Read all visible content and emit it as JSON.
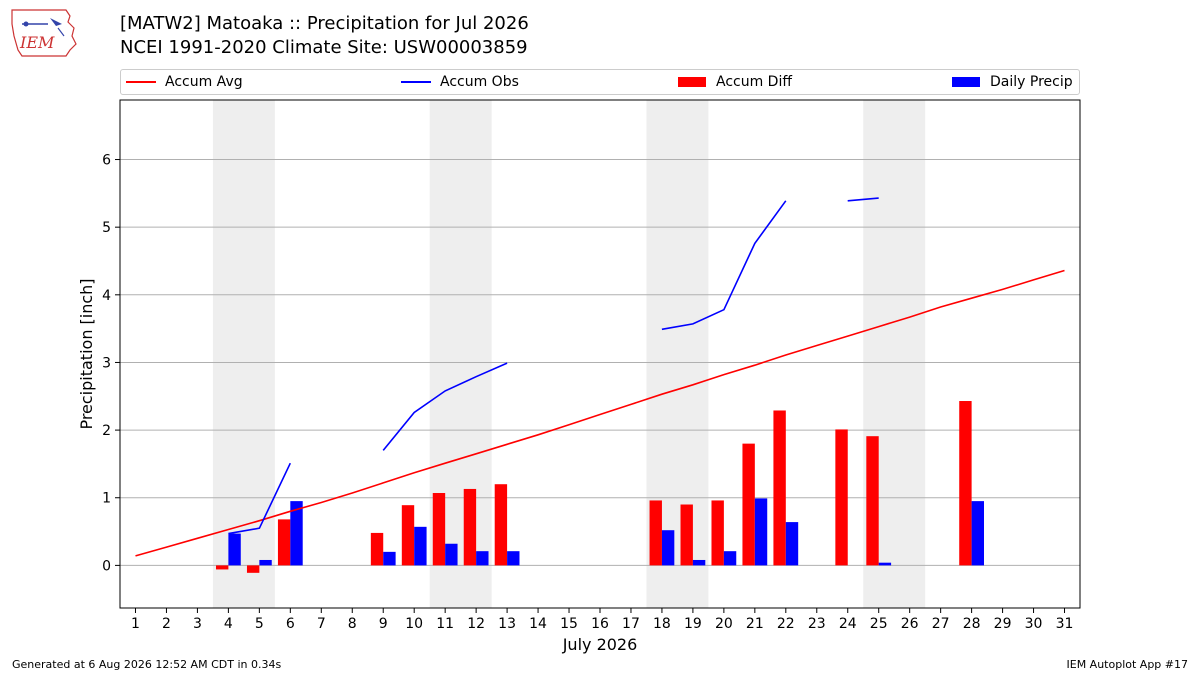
{
  "header": {
    "title_line1": "[MATW2] Matoaka :: Precipitation for Jul 2026",
    "title_line2": "NCEI 1991-2020 Climate Site: USW00003859"
  },
  "logo": {
    "text": "IEM",
    "icon": "iem-iowa-logo-icon"
  },
  "footer": {
    "generated": "Generated at 6 Aug 2026 12:52 AM CDT in 0.34s",
    "app": "IEM Autoplot App #17"
  },
  "colors": {
    "accum_avg": "#ff0000",
    "accum_obs": "#0000ff",
    "accum_diff": "#ff0000",
    "daily_precip": "#0000ff",
    "weekend_shade": "#eeeeee",
    "grid": "#b0b0b0"
  },
  "chart_data": {
    "type": "bar",
    "xlabel": "July 2026",
    "ylabel": "Precipitation [inch]",
    "xlim": [
      0.5,
      31.5
    ],
    "ylim": [
      -0.63,
      6.88
    ],
    "yticks": [
      0,
      1,
      2,
      3,
      4,
      5,
      6
    ],
    "grid": true,
    "legend_position": "top",
    "legend": {
      "accum_avg": "Accum Avg",
      "accum_obs": "Accum Obs",
      "accum_diff": "Accum Diff",
      "daily_precip": "Daily Precip"
    },
    "x": [
      1,
      2,
      3,
      4,
      5,
      6,
      7,
      8,
      9,
      10,
      11,
      12,
      13,
      14,
      15,
      16,
      17,
      18,
      19,
      20,
      21,
      22,
      23,
      24,
      25,
      26,
      27,
      28,
      29,
      30,
      31
    ],
    "weekend_shading": [
      [
        3.5,
        5.5
      ],
      [
        10.5,
        12.5
      ],
      [
        17.5,
        19.5
      ],
      [
        24.5,
        26.5
      ]
    ],
    "series": [
      {
        "name": "Accum Avg",
        "kind": "line",
        "values": [
          0.14,
          0.27,
          0.4,
          0.53,
          0.66,
          0.8,
          0.93,
          1.07,
          1.22,
          1.37,
          1.51,
          1.65,
          1.79,
          1.93,
          2.08,
          2.23,
          2.38,
          2.53,
          2.67,
          2.82,
          2.96,
          3.11,
          3.25,
          3.39,
          3.53,
          3.67,
          3.82,
          3.95,
          4.08,
          4.22,
          4.36
        ]
      },
      {
        "name": "Accum Obs",
        "kind": "line",
        "values": [
          null,
          null,
          null,
          0.47,
          0.55,
          1.51,
          null,
          null,
          1.7,
          2.26,
          2.58,
          2.79,
          2.99,
          null,
          null,
          null,
          null,
          3.49,
          3.57,
          3.78,
          4.76,
          5.39,
          null,
          5.39,
          5.43,
          null,
          null,
          null,
          null,
          null,
          null
        ]
      },
      {
        "name": "Accum Diff",
        "kind": "bar",
        "values": [
          null,
          null,
          null,
          -0.06,
          -0.11,
          0.68,
          null,
          null,
          0.48,
          0.89,
          1.07,
          1.13,
          1.2,
          null,
          null,
          null,
          null,
          0.96,
          0.9,
          0.96,
          1.8,
          2.29,
          null,
          2.01,
          1.91,
          null,
          null,
          2.43,
          null,
          null,
          null
        ]
      },
      {
        "name": "Daily Precip",
        "kind": "bar",
        "values": [
          null,
          null,
          null,
          0.47,
          0.08,
          0.95,
          null,
          null,
          0.2,
          0.57,
          0.32,
          0.21,
          0.21,
          null,
          null,
          null,
          null,
          0.52,
          0.08,
          0.21,
          0.99,
          0.64,
          null,
          null,
          0.04,
          null,
          null,
          0.95,
          null,
          null,
          null
        ]
      }
    ]
  }
}
